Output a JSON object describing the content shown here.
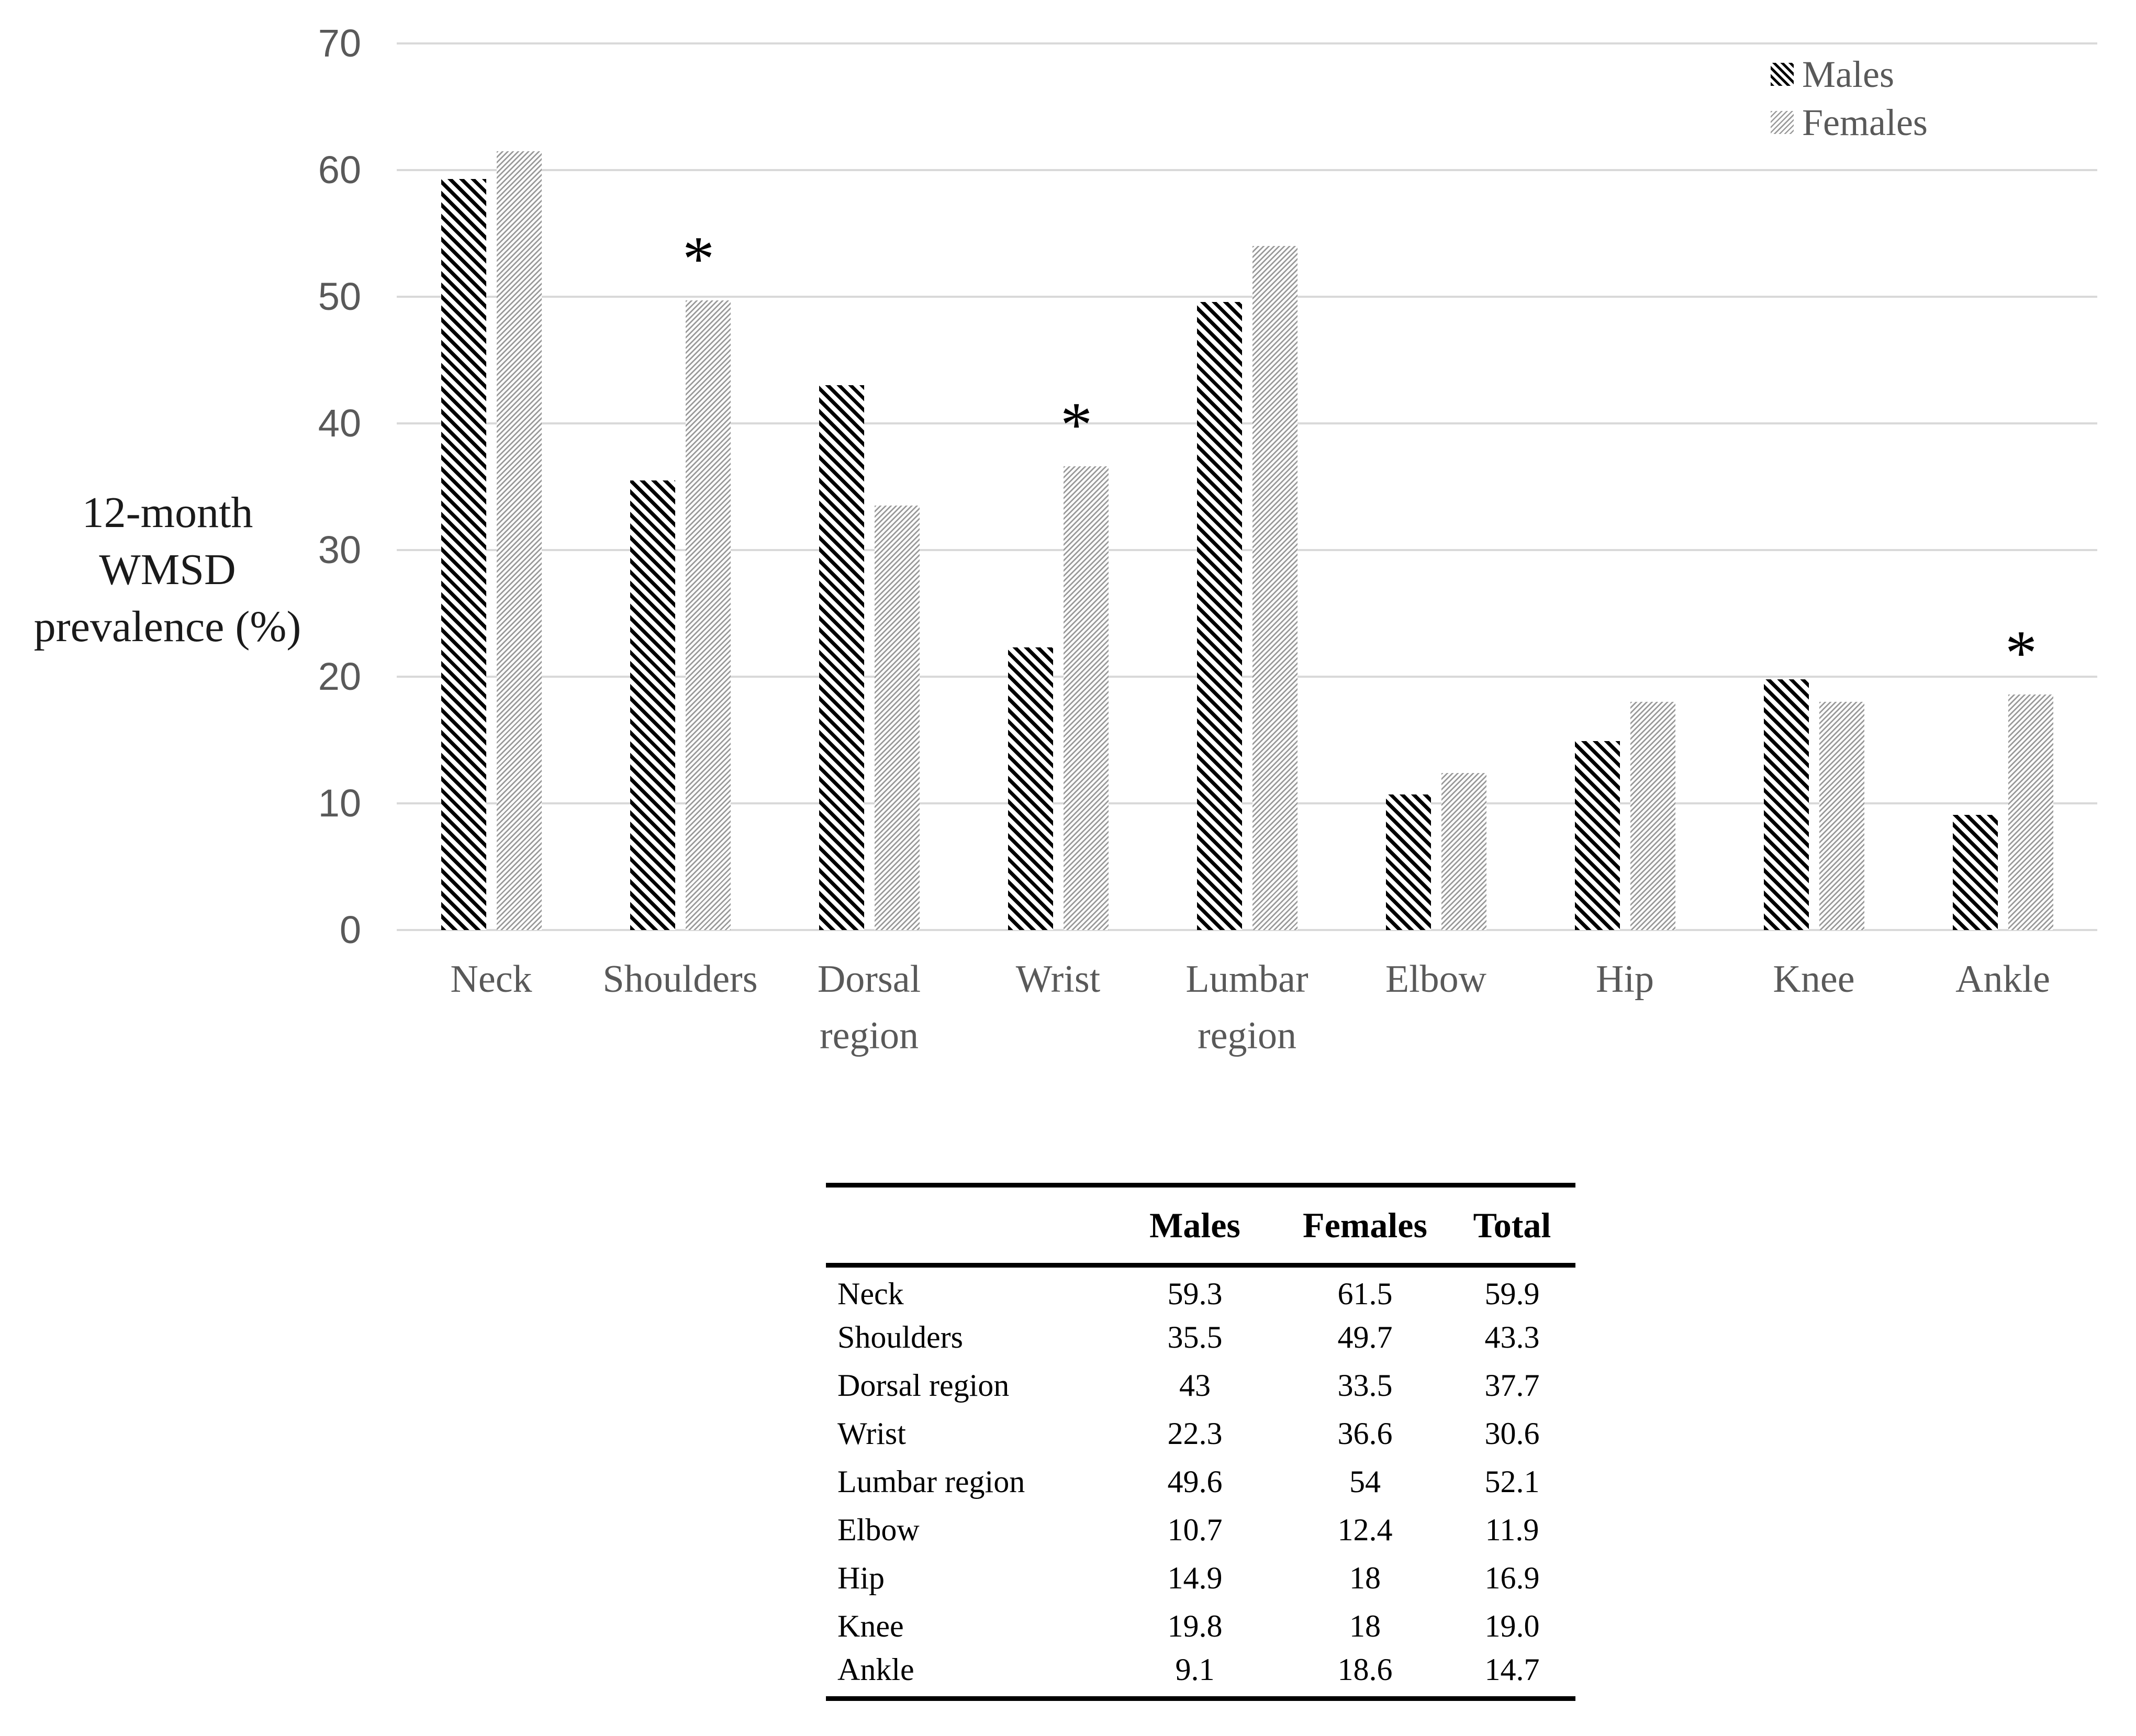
{
  "chart_data": {
    "type": "bar",
    "title": "",
    "ylabel_lines": [
      "12-month",
      "WMSD",
      "prevalence (%)"
    ],
    "xlabel": "",
    "ylim": [
      0,
      70
    ],
    "y_ticks": [
      70,
      60,
      50,
      40,
      30,
      20,
      10,
      0
    ],
    "grid": true,
    "legend_position": "top-right",
    "categories": [
      "Neck",
      "Shoulders",
      "Dorsal region",
      "Wrist",
      "Lumbar region",
      "Elbow",
      "Hip",
      "Knee",
      "Ankle"
    ],
    "series": [
      {
        "name": "Males",
        "values": [
          59.3,
          35.5,
          43,
          22.3,
          49.6,
          10.7,
          14.9,
          19.8,
          9.1
        ]
      },
      {
        "name": "Females",
        "values": [
          61.5,
          49.7,
          33.5,
          36.6,
          54,
          12.4,
          18,
          18,
          18.6
        ]
      }
    ],
    "significance_marker": "*",
    "significant_categories": [
      "Shoulders",
      "Wrist",
      "Ankle"
    ],
    "colors": {
      "males_hatch": "#000000",
      "females_hatch": "#9a9a9a",
      "gridline": "#d9d9d9",
      "axis_text": "#595959",
      "title_text": "#1a1a1a"
    }
  },
  "legend": {
    "items": [
      "Males",
      "Females"
    ]
  },
  "table": {
    "columns": [
      "",
      "Males",
      "Females",
      "Total"
    ],
    "rows": [
      [
        "Neck",
        "59.3",
        "61.5",
        "59.9"
      ],
      [
        "Shoulders",
        "35.5",
        "49.7",
        "43.3"
      ],
      [
        "Dorsal region",
        "43",
        "33.5",
        "37.7"
      ],
      [
        "Wrist",
        "22.3",
        "36.6",
        "30.6"
      ],
      [
        "Lumbar region",
        "49.6",
        "54",
        "52.1"
      ],
      [
        "Elbow",
        "10.7",
        "12.4",
        "11.9"
      ],
      [
        "Hip",
        "14.9",
        "18",
        "16.9"
      ],
      [
        "Knee",
        "19.8",
        "18",
        "19.0"
      ],
      [
        "Ankle",
        "9.1",
        "18.6",
        "14.7"
      ]
    ]
  }
}
